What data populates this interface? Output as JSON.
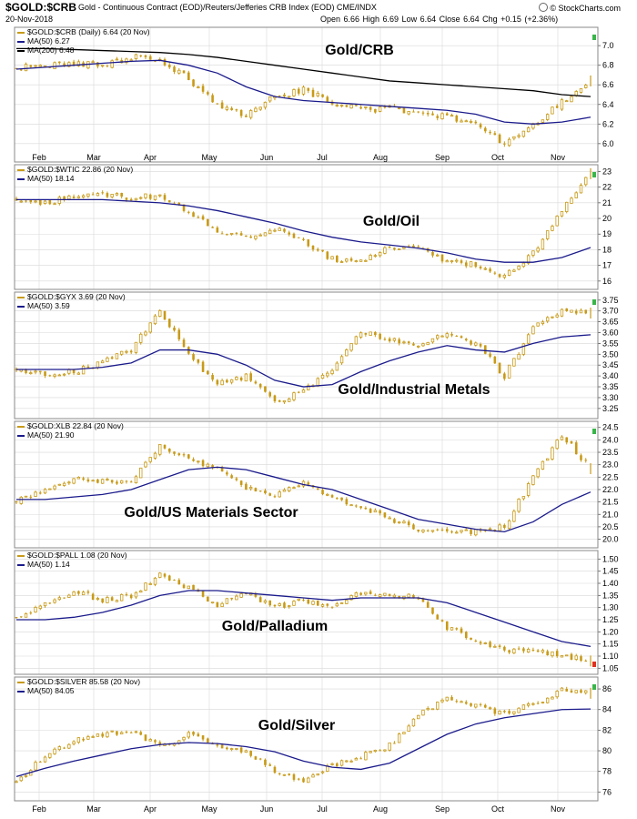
{
  "header": {
    "symbol": "$GOLD:$CRB",
    "title": "Gold - Continuous Contract (EOD)/Reuters/Jefferies CRB Index (EOD)  CME/INDX",
    "date": "20-Nov-2018",
    "quote": "Open 6.66  High 6.69  Low 6.64  Close 6.64  Chg +0.15 (+2.36%)",
    "brand": "© StockCharts.com",
    "brand_icon": "stockcharts-logo-icon"
  },
  "x_axis": {
    "months": [
      "Feb",
      "Mar",
      "Apr",
      "May",
      "Jun",
      "Jul",
      "Aug",
      "Sep",
      "Oct",
      "Nov"
    ]
  },
  "colors": {
    "price": "#c89a18",
    "ma50": "#1a1a8c",
    "ma200": "#000000",
    "grid": "#d8d8d8",
    "border": "#888888",
    "up_marker": "#39b54a",
    "down_marker": "#e0301e"
  },
  "chart_data": [
    {
      "type": "line",
      "legend": [
        "$GOLD:$CRB (Daily) 6.64 (20 Nov)",
        "MA(50) 6.27",
        "MA(200) 6.48"
      ],
      "annotation": "Gold/CRB",
      "ylim": [
        5.85,
        7.15
      ],
      "yticks": [
        6.0,
        6.2,
        6.4,
        6.6,
        6.8,
        7.0
      ],
      "ytick_labels": [
        "6.0",
        "6.2",
        "6.4",
        "6.6",
        "6.8",
        "7.0"
      ],
      "last_marker": "up",
      "x": [
        "Jan 22",
        "Feb",
        "Feb 15",
        "Mar",
        "Mar 15",
        "Apr",
        "Apr 15",
        "May",
        "May 15",
        "Jun",
        "Jun 15",
        "Jul",
        "Jul 15",
        "Aug",
        "Aug 15",
        "Sep",
        "Sep 15",
        "Oct",
        "Oct 15",
        "Nov",
        "Nov 20"
      ],
      "series": [
        {
          "values": [
            6.78,
            6.8,
            6.82,
            6.8,
            6.88,
            6.86,
            6.66,
            6.38,
            6.28,
            6.48,
            6.55,
            6.42,
            6.34,
            6.36,
            6.3,
            6.28,
            6.18,
            6.0,
            6.18,
            6.42,
            6.64
          ]
        },
        {
          "values": [
            6.76,
            6.78,
            6.8,
            6.82,
            6.84,
            6.85,
            6.8,
            6.72,
            6.58,
            6.48,
            6.44,
            6.42,
            6.4,
            6.38,
            6.36,
            6.34,
            6.3,
            6.22,
            6.2,
            6.22,
            6.27
          ]
        },
        {
          "values": [
            6.97,
            6.97,
            6.96,
            6.95,
            6.94,
            6.93,
            6.91,
            6.88,
            6.84,
            6.8,
            6.76,
            6.72,
            6.68,
            6.64,
            6.62,
            6.6,
            6.58,
            6.56,
            6.54,
            6.5,
            6.48
          ]
        }
      ]
    },
    {
      "type": "line",
      "legend": [
        "$GOLD:$WTIC 22.86 (20 Nov)",
        "MA(50) 18.14"
      ],
      "annotation": "Gold/Oil",
      "ylim": [
        15.7,
        23.2
      ],
      "yticks": [
        16,
        17,
        18,
        19,
        20,
        21,
        22,
        23
      ],
      "ytick_labels": [
        "16",
        "17",
        "18",
        "19",
        "20",
        "21",
        "22",
        "23"
      ],
      "last_marker": "up",
      "x": [
        "Jan 22",
        "Feb",
        "Feb 15",
        "Mar",
        "Mar 15",
        "Apr",
        "Apr 15",
        "May",
        "May 15",
        "Jun",
        "Jun 15",
        "Jul",
        "Jul 15",
        "Aug",
        "Aug 15",
        "Sep",
        "Sep 15",
        "Oct",
        "Oct 15",
        "Nov",
        "Nov 20"
      ],
      "series": [
        {
          "values": [
            21.2,
            21.0,
            21.4,
            21.6,
            21.3,
            21.5,
            20.4,
            19.2,
            18.8,
            19.4,
            18.5,
            17.4,
            17.3,
            18.1,
            18.0,
            17.3,
            17.0,
            16.3,
            17.8,
            20.5,
            22.86
          ]
        },
        {
          "values": [
            21.2,
            21.2,
            21.2,
            21.2,
            21.1,
            21.0,
            20.8,
            20.5,
            20.1,
            19.7,
            19.2,
            18.8,
            18.5,
            18.3,
            18.1,
            17.8,
            17.4,
            17.2,
            17.2,
            17.5,
            18.14
          ]
        }
      ]
    },
    {
      "type": "line",
      "legend": [
        "$GOLD:$GYX 3.69 (20 Nov)",
        "MA(50) 3.59"
      ],
      "annotation": "Gold/Industrial Metals",
      "ylim": [
        3.22,
        3.77
      ],
      "yticks": [
        3.25,
        3.3,
        3.35,
        3.4,
        3.45,
        3.5,
        3.55,
        3.6,
        3.65,
        3.7,
        3.75
      ],
      "ytick_labels": [
        "3.25",
        "3.30",
        "3.35",
        "3.40",
        "3.45",
        "3.50",
        "3.55",
        "3.60",
        "3.65",
        "3.70",
        "3.75"
      ],
      "last_marker": "up",
      "x": [
        "Jan 22",
        "Feb",
        "Feb 15",
        "Mar",
        "Mar 15",
        "Apr",
        "Apr 15",
        "May",
        "May 15",
        "Jun",
        "Jun 15",
        "Jul",
        "Jul 15",
        "Aug",
        "Aug 15",
        "Sep",
        "Sep 15",
        "Oct",
        "Oct 15",
        "Nov",
        "Nov 20"
      ],
      "series": [
        {
          "values": [
            3.43,
            3.41,
            3.42,
            3.46,
            3.52,
            3.7,
            3.5,
            3.36,
            3.4,
            3.28,
            3.33,
            3.42,
            3.6,
            3.57,
            3.55,
            3.6,
            3.55,
            3.4,
            3.62,
            3.7,
            3.69
          ]
        },
        {
          "values": [
            3.43,
            3.43,
            3.43,
            3.44,
            3.46,
            3.52,
            3.52,
            3.5,
            3.45,
            3.38,
            3.35,
            3.36,
            3.42,
            3.47,
            3.51,
            3.54,
            3.52,
            3.51,
            3.55,
            3.58,
            3.59
          ]
        }
      ]
    },
    {
      "type": "line",
      "legend": [
        "$GOLD:XLB 22.84 (20 Nov)",
        "MA(50) 21.90"
      ],
      "annotation": "Gold/US Materials Sector",
      "ylim": [
        19.8,
        24.6
      ],
      "yticks": [
        20.0,
        20.5,
        21.0,
        21.5,
        22.0,
        22.5,
        23.0,
        23.5,
        24.0,
        24.5
      ],
      "ytick_labels": [
        "20.0",
        "20.5",
        "21.0",
        "21.5",
        "22.0",
        "22.5",
        "23.0",
        "23.5",
        "24.0",
        "24.5"
      ],
      "last_marker": "up",
      "x": [
        "Jan 22",
        "Feb",
        "Feb 15",
        "Mar",
        "Mar 15",
        "Apr",
        "Apr 15",
        "May",
        "May 15",
        "Jun",
        "Jun 15",
        "Jul",
        "Jul 15",
        "Aug",
        "Aug 15",
        "Sep",
        "Sep 15",
        "Oct",
        "Oct 15",
        "Nov",
        "Nov 20"
      ],
      "series": [
        {
          "values": [
            21.5,
            22.0,
            22.5,
            22.3,
            22.4,
            23.8,
            23.2,
            22.8,
            22.1,
            21.8,
            22.3,
            21.7,
            21.3,
            20.8,
            20.4,
            20.4,
            20.3,
            20.5,
            22.5,
            24.2,
            22.84
          ]
        },
        {
          "values": [
            21.6,
            21.6,
            21.7,
            21.8,
            22.0,
            22.4,
            22.8,
            22.9,
            22.8,
            22.5,
            22.2,
            22.0,
            21.6,
            21.2,
            20.8,
            20.6,
            20.4,
            20.3,
            20.7,
            21.4,
            21.9
          ]
        }
      ]
    },
    {
      "type": "line",
      "legend": [
        "$GOLD:$PALL 1.08 (20 Nov)",
        "MA(50) 1.14"
      ],
      "annotation": "Gold/Palladium",
      "ylim": [
        1.04,
        1.52
      ],
      "yticks": [
        1.05,
        1.1,
        1.15,
        1.2,
        1.25,
        1.3,
        1.35,
        1.4,
        1.45,
        1.5
      ],
      "ytick_labels": [
        "1.05",
        "1.10",
        "1.15",
        "1.20",
        "1.25",
        "1.30",
        "1.35",
        "1.40",
        "1.45",
        "1.50"
      ],
      "last_marker": "down",
      "x": [
        "Jan 22",
        "Feb",
        "Feb 15",
        "Mar",
        "Mar 15",
        "Apr",
        "Apr 15",
        "May",
        "May 15",
        "Jun",
        "Jun 15",
        "Jul",
        "Jul 15",
        "Aug",
        "Aug 15",
        "Sep",
        "Sep 15",
        "Oct",
        "Oct 15",
        "Nov",
        "Nov 20"
      ],
      "series": [
        {
          "values": [
            1.26,
            1.31,
            1.37,
            1.33,
            1.35,
            1.44,
            1.38,
            1.31,
            1.36,
            1.3,
            1.33,
            1.31,
            1.36,
            1.35,
            1.34,
            1.22,
            1.17,
            1.12,
            1.12,
            1.1,
            1.08
          ]
        },
        {
          "values": [
            1.25,
            1.25,
            1.26,
            1.28,
            1.31,
            1.35,
            1.37,
            1.37,
            1.36,
            1.35,
            1.34,
            1.33,
            1.34,
            1.34,
            1.34,
            1.32,
            1.28,
            1.24,
            1.2,
            1.16,
            1.14
          ]
        }
      ]
    },
    {
      "type": "line",
      "legend": [
        "$GOLD:$SILVER 85.58 (20 Nov)",
        "MA(50) 84.05"
      ],
      "annotation": "Gold/Silver",
      "ylim": [
        75.5,
        86.8
      ],
      "yticks": [
        76,
        78,
        80,
        82,
        84,
        86
      ],
      "ytick_labels": [
        "76",
        "78",
        "80",
        "82",
        "84",
        "86"
      ],
      "last_marker": "up",
      "x": [
        "Jan 22",
        "Feb",
        "Feb 15",
        "Mar",
        "Mar 15",
        "Apr",
        "Apr 15",
        "May",
        "May 15",
        "Jun",
        "Jun 15",
        "Jul",
        "Jul 15",
        "Aug",
        "Aug 15",
        "Sep",
        "Sep 15",
        "Oct",
        "Oct 15",
        "Nov",
        "Nov 20"
      ],
      "series": [
        {
          "values": [
            77.0,
            79.5,
            81.0,
            81.5,
            82.0,
            80.5,
            81.5,
            80.5,
            80.0,
            78.0,
            77.0,
            78.5,
            79.5,
            80.5,
            83.5,
            85.0,
            84.5,
            83.5,
            84.5,
            85.8,
            85.58
          ]
        },
        {
          "values": [
            77.5,
            78.3,
            79.0,
            79.6,
            80.2,
            80.6,
            80.8,
            80.7,
            80.4,
            79.9,
            79.0,
            78.4,
            78.2,
            78.8,
            80.2,
            81.6,
            82.6,
            83.2,
            83.6,
            84.0,
            84.05
          ]
        }
      ]
    }
  ]
}
